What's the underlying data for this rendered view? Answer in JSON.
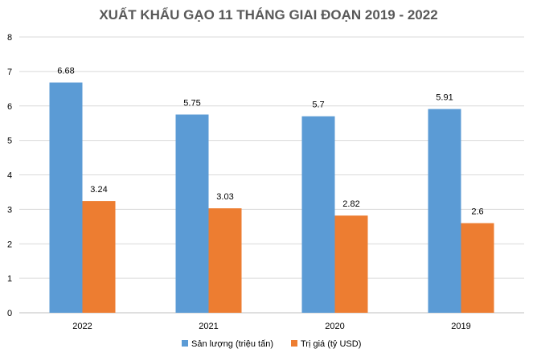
{
  "chart_data": {
    "type": "bar",
    "title": "XUẤT KHẨU GẠO 11 THÁNG GIAI ĐOẠN 2019 - 2022",
    "categories": [
      "2022",
      "2021",
      "2020",
      "2019"
    ],
    "series": [
      {
        "name": "Sản lượng (triệu tấn)",
        "values": [
          6.68,
          5.75,
          5.7,
          5.91
        ],
        "color": "#5b9bd5"
      },
      {
        "name": "Trị giá (tỷ USD)",
        "values": [
          3.24,
          3.03,
          2.82,
          2.6
        ],
        "color": "#ed7d31"
      }
    ],
    "xlabel": "",
    "ylabel": "",
    "ylim": [
      0,
      8
    ],
    "yticks": [
      "0",
      "1",
      "2",
      "3",
      "4",
      "5",
      "6",
      "7",
      "8"
    ],
    "data_labels": [
      [
        "6.68",
        "5.75",
        "5.7",
        "5.91"
      ],
      [
        "3.24",
        "3.03",
        "2.82",
        "2.6"
      ]
    ],
    "grid": true,
    "legend_position": "bottom"
  }
}
